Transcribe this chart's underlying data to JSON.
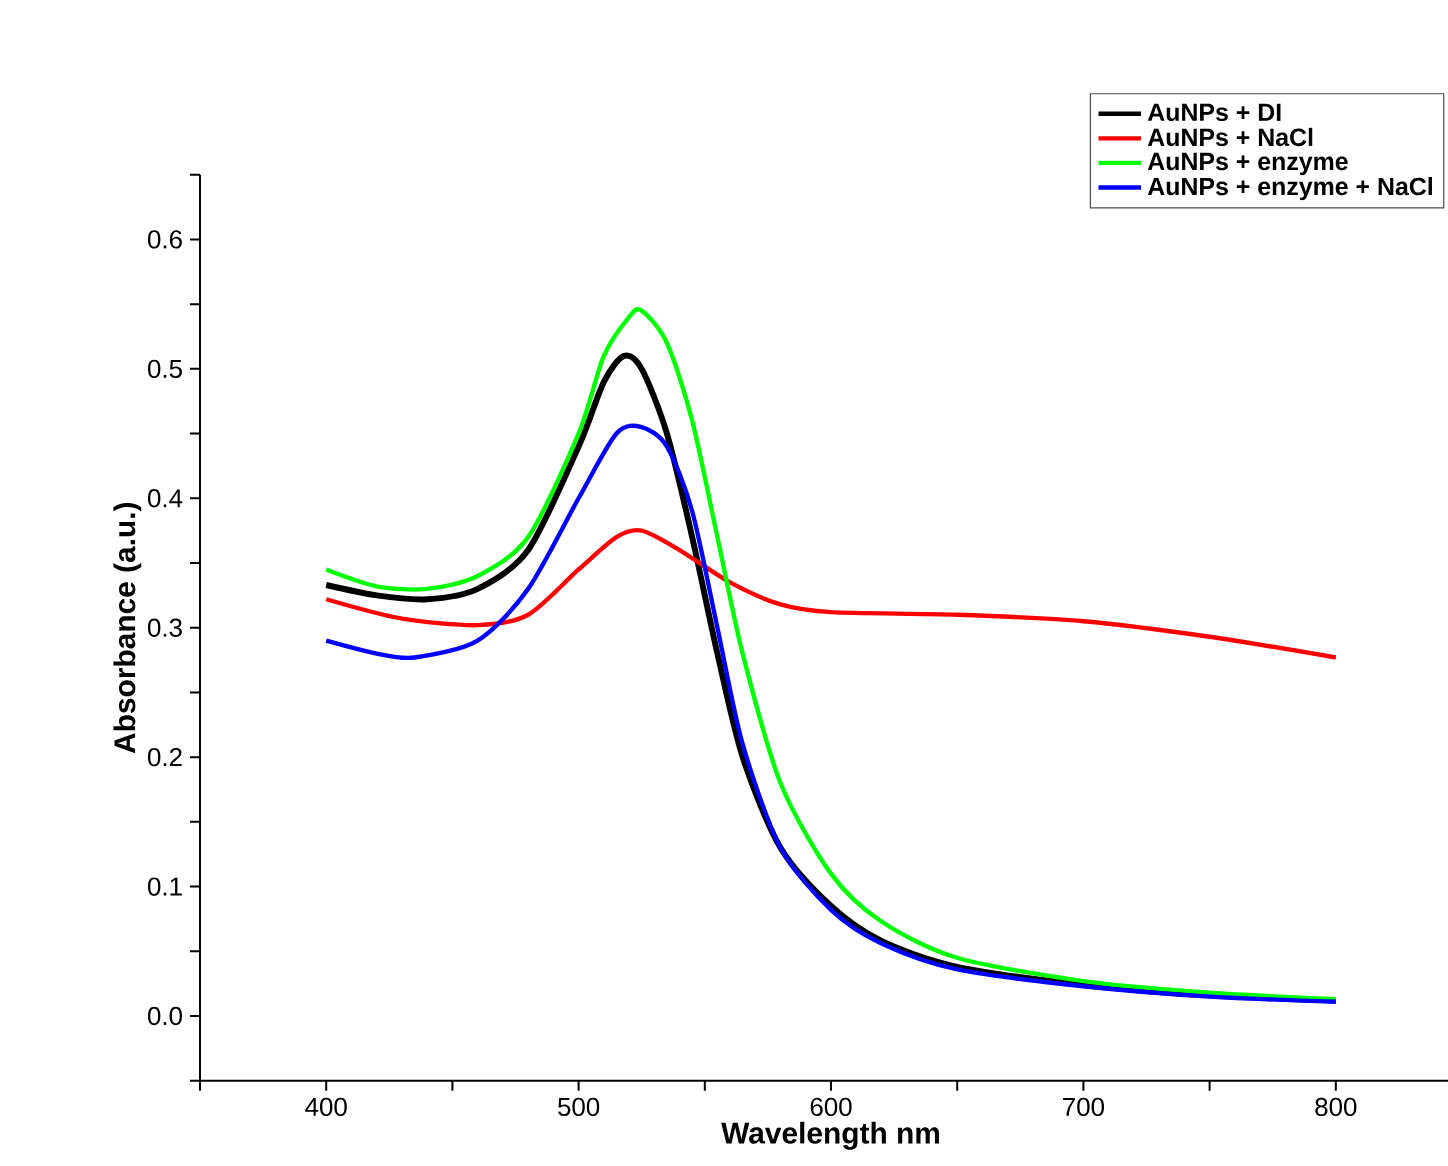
{
  "chart_data": {
    "type": "line",
    "xlabel": "Wavelength nm",
    "ylabel": "Absorbance (a.u.)",
    "legend": "top right",
    "xlim": [
      350,
      850
    ],
    "ylim": [
      -0.05,
      0.65
    ],
    "xticks": [
      {
        "value": 350,
        "label": null
      },
      400,
      {
        "value": 450,
        "label": null
      },
      500,
      {
        "value": 550,
        "label": null
      },
      600,
      {
        "value": 650,
        "label": null
      },
      700,
      {
        "value": 750,
        "label": null
      },
      800,
      {
        "value": 850,
        "label": null
      }
    ],
    "yticks": [
      {
        "value": -0.05,
        "label": null
      },
      {
        "value": 0,
        "label": "0.0"
      },
      {
        "value": 0.05,
        "label": null
      },
      0.1,
      {
        "value": 0.15,
        "label": null
      },
      0.2,
      {
        "value": 0.25,
        "label": null
      },
      0.3,
      {
        "value": 0.35,
        "label": null
      },
      0.4,
      {
        "value": 0.45,
        "label": null
      },
      0.5,
      {
        "value": 0.55,
        "label": null
      },
      0.6,
      {
        "value": 0.65,
        "label": null
      }
    ],
    "series": [
      {
        "name": "AuNPs + DI",
        "color": "#000000",
        "x": [
          400,
          420,
          440,
          460,
          480,
          500,
          510,
          518,
          525,
          535,
          545,
          555,
          565,
          580,
          600,
          620,
          650,
          700,
          750,
          800
        ],
        "values": [
          0.333,
          0.325,
          0.322,
          0.33,
          0.36,
          0.44,
          0.49,
          0.51,
          0.5,
          0.45,
          0.37,
          0.28,
          0.2,
          0.13,
          0.085,
          0.058,
          0.038,
          0.024,
          0.016,
          0.012
        ]
      },
      {
        "name": "AuNPs + NaCl",
        "color": "#ff0000",
        "x": [
          400,
          430,
          460,
          480,
          500,
          515,
          525,
          540,
          560,
          580,
          600,
          650,
          700,
          750,
          800
        ],
        "values": [
          0.322,
          0.307,
          0.302,
          0.31,
          0.345,
          0.37,
          0.375,
          0.36,
          0.335,
          0.318,
          0.312,
          0.31,
          0.305,
          0.293,
          0.277
        ]
      },
      {
        "name": "AuNPs + enzyme",
        "color": "#00ff00",
        "x": [
          400,
          420,
          440,
          460,
          480,
          500,
          510,
          520,
          525,
          535,
          545,
          555,
          565,
          580,
          600,
          620,
          650,
          700,
          750,
          800
        ],
        "values": [
          0.345,
          0.332,
          0.33,
          0.34,
          0.37,
          0.45,
          0.51,
          0.54,
          0.545,
          0.52,
          0.46,
          0.37,
          0.28,
          0.18,
          0.11,
          0.073,
          0.045,
          0.027,
          0.018,
          0.013
        ]
      },
      {
        "name": "AuNPs + enzyme + NaCl",
        "color": "#0000ff",
        "x": [
          400,
          420,
          435,
          460,
          480,
          500,
          515,
          525,
          535,
          545,
          555,
          565,
          580,
          600,
          620,
          650,
          700,
          750,
          800
        ],
        "values": [
          0.29,
          0.28,
          0.277,
          0.29,
          0.33,
          0.4,
          0.45,
          0.455,
          0.44,
          0.39,
          0.3,
          0.21,
          0.13,
          0.082,
          0.056,
          0.036,
          0.023,
          0.015,
          0.011
        ]
      }
    ]
  }
}
